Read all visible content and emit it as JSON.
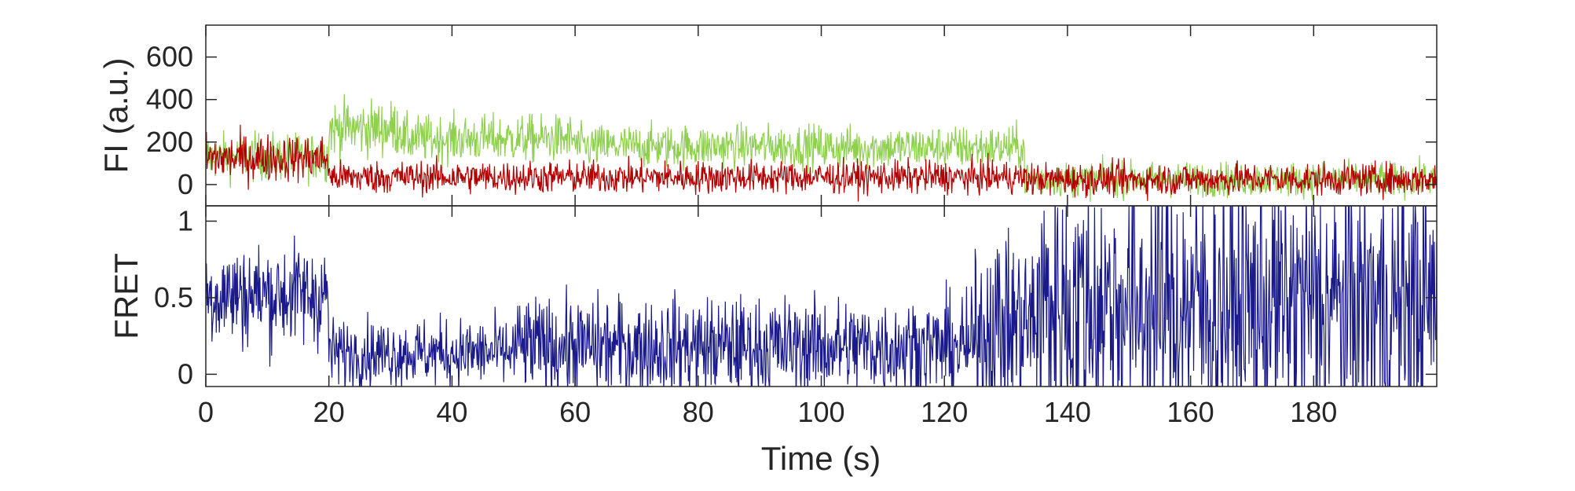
{
  "chart_data": [
    {
      "type": "line",
      "panel": "fluorescence",
      "ylabel": "FI (a.u.)",
      "xlabel": "",
      "xlim": [
        0,
        200
      ],
      "ylim": [
        -100,
        750
      ],
      "yticks": [
        0,
        200,
        400,
        600
      ],
      "xticks": [
        0,
        20,
        40,
        60,
        80,
        100,
        120,
        140,
        160,
        180
      ],
      "grid": false,
      "series": [
        {
          "color": "#8fd14f",
          "segments": [
            {
              "x": [
                0,
                20
              ],
              "mean": 130,
              "noise": 55
            },
            {
              "x": [
                20,
                32
              ],
              "mean": 265,
              "noise": 65
            },
            {
              "x": [
                32,
                60
              ],
              "mean": 215,
              "noise": 55
            },
            {
              "x": [
                60,
                100
              ],
              "mean": 180,
              "noise": 50
            },
            {
              "x": [
                100,
                133
              ],
              "mean": 175,
              "noise": 50
            },
            {
              "x": [
                133,
                200
              ],
              "mean": 25,
              "noise": 40
            }
          ]
        },
        {
          "color": "#b40000",
          "segments": [
            {
              "x": [
                0,
                20
              ],
              "mean": 125,
              "noise": 55
            },
            {
              "x": [
                20,
                133
              ],
              "mean": 35,
              "noise": 38
            },
            {
              "x": [
                133,
                200
              ],
              "mean": 25,
              "noise": 38
            }
          ]
        }
      ]
    },
    {
      "type": "line",
      "panel": "fret",
      "ylabel": "FRET",
      "xlabel": "Time (s)",
      "xlim": [
        0,
        200
      ],
      "ylim": [
        -0.08,
        1.1
      ],
      "yticks": [
        0,
        0.5,
        1
      ],
      "xticks": [
        0,
        20,
        40,
        60,
        80,
        100,
        120,
        140,
        160,
        180
      ],
      "grid": false,
      "series": [
        {
          "color": "#1a1a8c",
          "segments": [
            {
              "x": [
                0,
                20
              ],
              "mean": 0.52,
              "noise": 0.17
            },
            {
              "x": [
                20,
                50
              ],
              "mean": 0.14,
              "noise": 0.11
            },
            {
              "x": [
                50,
                125
              ],
              "mean": 0.18,
              "noise": 0.16
            },
            {
              "x": [
                125,
                135
              ],
              "mean": 0.32,
              "noise": 0.3
            },
            {
              "x": [
                135,
                200
              ],
              "mean": 0.45,
              "noise": 0.45
            }
          ]
        }
      ]
    }
  ]
}
